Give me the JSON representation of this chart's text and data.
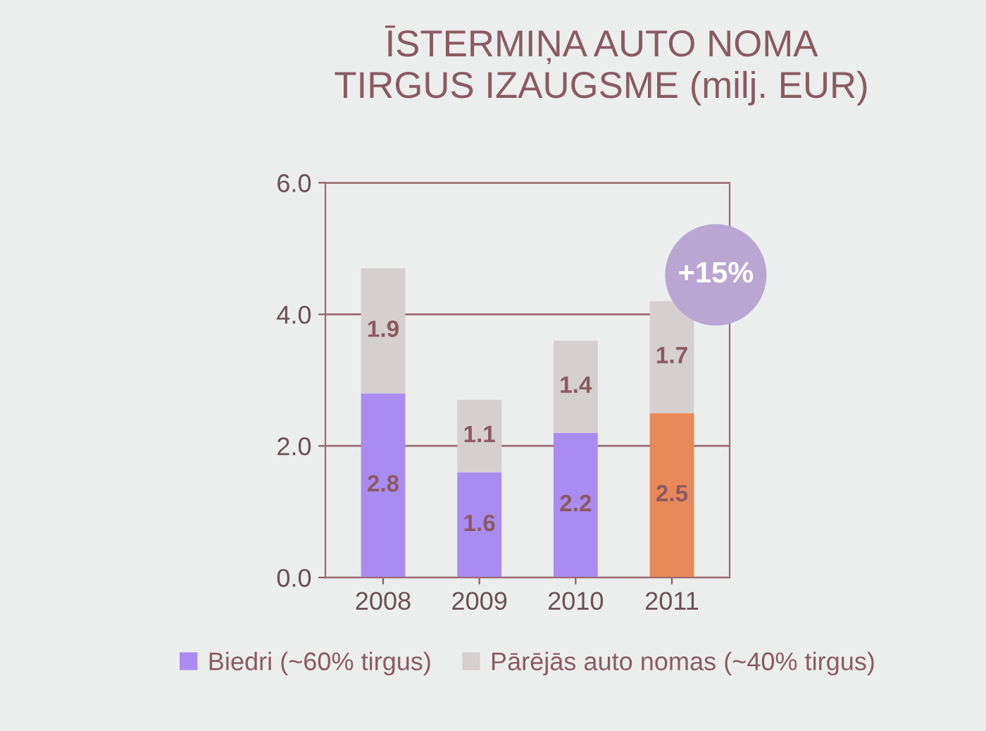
{
  "chart_data": {
    "type": "bar",
    "title": "ĪSTERMIŅA AUTO NOMA\nTIRGUS IZAUGSME (milj. EUR)",
    "categories": [
      "2008",
      "2009",
      "2010",
      "2011"
    ],
    "stacked": true,
    "series": [
      {
        "name": "Biedri (~60% tirgus)",
        "color": "#a98cf0",
        "colors": [
          "#a98cf0",
          "#a98cf0",
          "#a98cf0",
          "#e8895a"
        ],
        "values": [
          2.8,
          1.6,
          2.2,
          2.5
        ]
      },
      {
        "name": "Pārējās auto nomas (~40% tirgus)",
        "color": "#d6cfcf",
        "values": [
          1.9,
          1.1,
          1.4,
          1.7
        ]
      }
    ],
    "ylim": [
      0,
      6
    ],
    "yticks": [
      {
        "value": 0,
        "label": "0.0"
      },
      {
        "value": 2,
        "label": "2.0"
      },
      {
        "value": 4,
        "label": "4.0"
      },
      {
        "value": 6,
        "label": "6.0"
      }
    ],
    "grid": "y",
    "legend": "bottom",
    "data_labels": true,
    "annotations": [
      "+15%"
    ]
  }
}
